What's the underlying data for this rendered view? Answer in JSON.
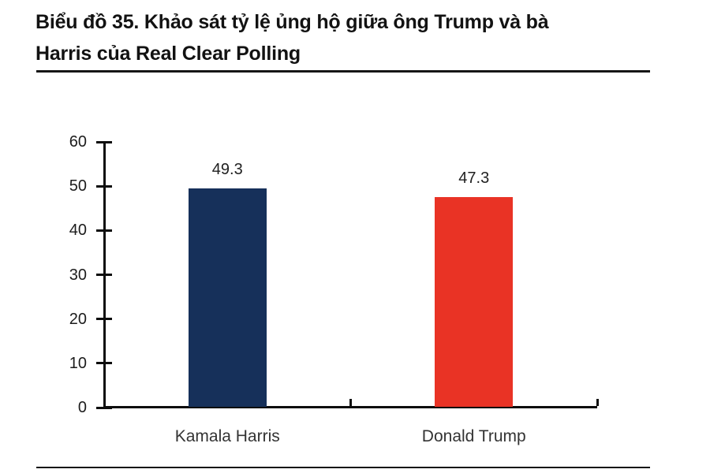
{
  "header": {
    "title_line1": "Biểu đồ 35. Khảo sát tỷ lệ ủng hộ giữa ông Trump và bà",
    "title_line2": "Harris của Real Clear Polling"
  },
  "chart_data": {
    "type": "bar",
    "title": "Biểu đồ 35. Khảo sát tỷ lệ ủng hộ giữa ông Trump và bà Harris của Real Clear Polling",
    "categories": [
      "Kamala Harris",
      "Donald Trump"
    ],
    "values": [
      49.3,
      47.3
    ],
    "value_labels": [
      "49.3",
      "47.3"
    ],
    "series_colors": [
      "#16305A",
      "#E93325"
    ],
    "yticks": [
      0,
      10,
      20,
      30,
      40,
      50,
      60
    ],
    "ylim": [
      0,
      60
    ],
    "xlabel": "",
    "ylabel": "",
    "grid": false,
    "legend": "none"
  },
  "colors": {
    "background": "#ffffff",
    "axis": "#0d0d0d",
    "rule": "#161616",
    "title_text": "#121212",
    "tick_text": "#1c1c1c",
    "category_text": "#333333",
    "value_text": "#1f1f1f"
  }
}
